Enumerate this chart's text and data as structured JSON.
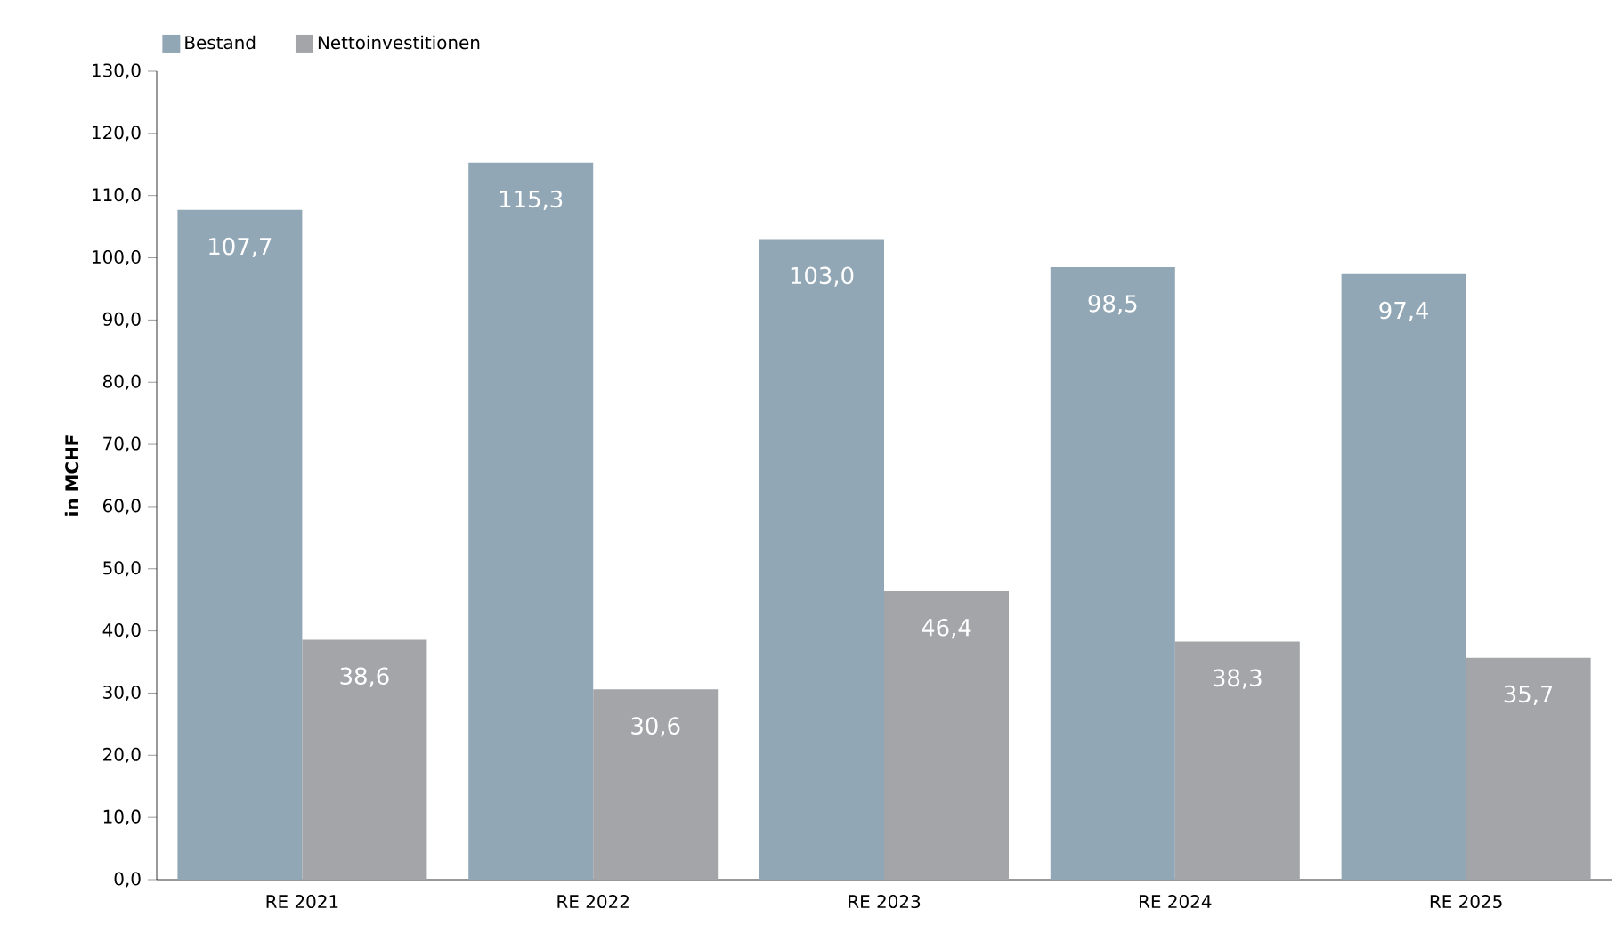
{
  "chart_data": {
    "type": "bar",
    "ylabel": "in MCHF",
    "categories": [
      "RE 2021",
      "RE 2022",
      "RE 2023",
      "RE 2024",
      "RE 2025"
    ],
    "series": [
      {
        "name": "Bestand",
        "color": "#91a7b5",
        "values": [
          107.7,
          115.3,
          103.0,
          98.5,
          97.4
        ],
        "value_labels": [
          "107,7",
          "115,3",
          "103,0",
          "98,5",
          "97,4"
        ]
      },
      {
        "name": "Nettoinvestitionen",
        "color": "#a3a5a9",
        "values": [
          38.6,
          30.6,
          46.4,
          38.3,
          35.7
        ],
        "value_labels": [
          "38,6",
          "30,6",
          "46,4",
          "38,3",
          "35,7"
        ]
      }
    ],
    "ylim": [
      0,
      130
    ],
    "yticks": [
      {
        "value": 0,
        "label": "0,0"
      },
      {
        "value": 10,
        "label": "10,0"
      },
      {
        "value": 20,
        "label": "20,0"
      },
      {
        "value": 30,
        "label": "30,0"
      },
      {
        "value": 40,
        "label": "40,0"
      },
      {
        "value": 50,
        "label": "50,0"
      },
      {
        "value": 60,
        "label": "60,0"
      },
      {
        "value": 70,
        "label": "70,0"
      },
      {
        "value": 80,
        "label": "80,0"
      },
      {
        "value": 90,
        "label": "90,0"
      },
      {
        "value": 100,
        "label": "100,0"
      },
      {
        "value": 110,
        "label": "110,0"
      },
      {
        "value": 120,
        "label": "120,0"
      },
      {
        "value": 130,
        "label": "130,0"
      }
    ],
    "legend": "top left"
  }
}
